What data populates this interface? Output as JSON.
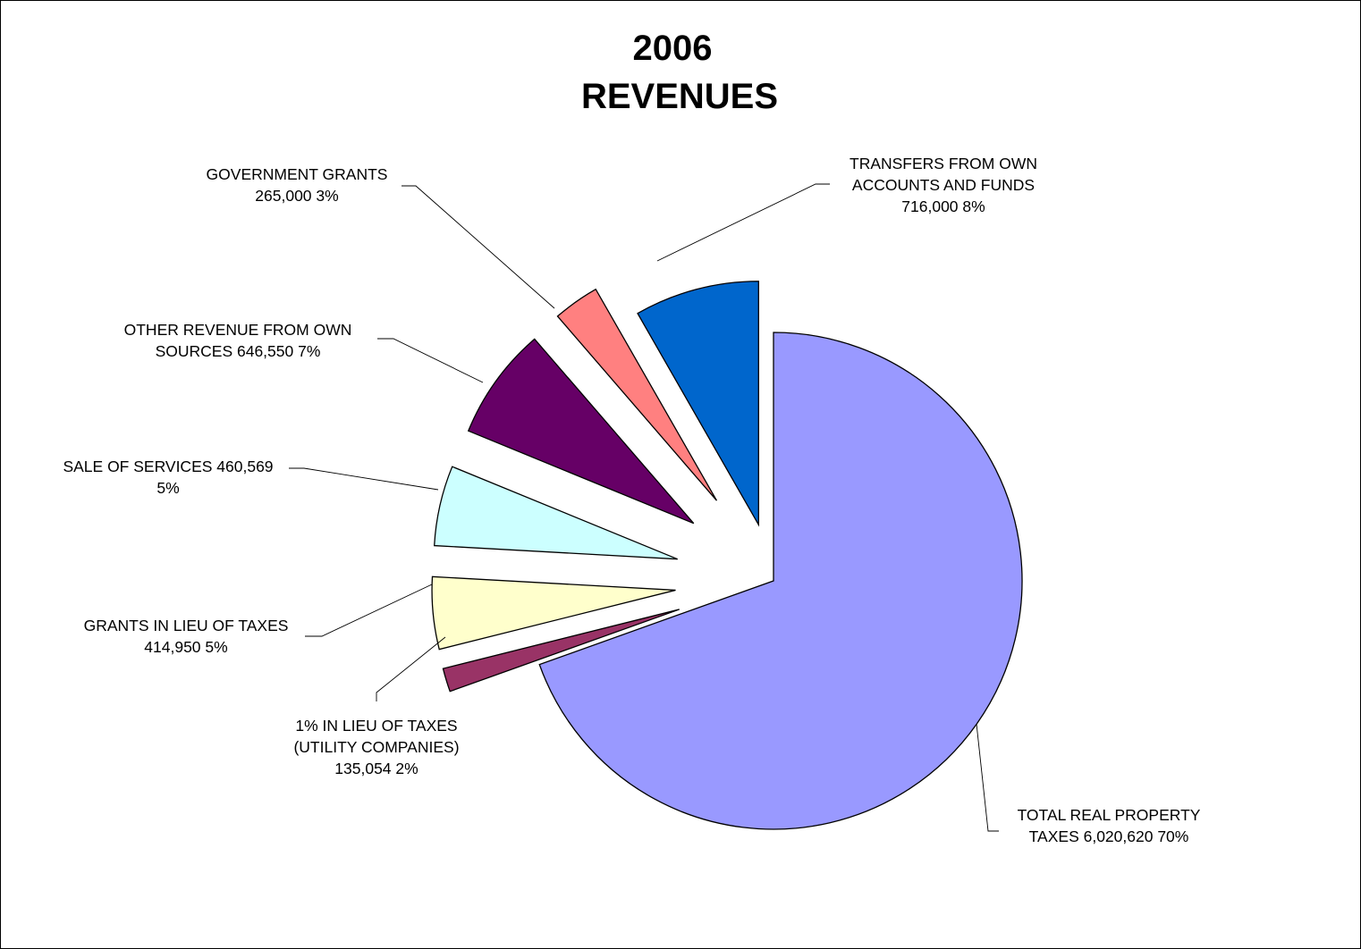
{
  "chart_data": {
    "type": "pie",
    "title": "2006\nREVENUES",
    "title_lines": [
      "2006",
      "REVENUES"
    ],
    "exploded": true,
    "total_label": "",
    "series": [
      {
        "name": "",
        "slices": [
          {
            "label_lines": [
              "TOTAL REAL PROPERTY",
              "TAXES 6,020,620  70%"
            ],
            "value": 6020620,
            "percent": 70,
            "color": "#9999FF"
          },
          {
            "label_lines": [
              "1% IN LIEU OF TAXES",
              "(UTILITY COMPANIES)",
              "135,054  2%"
            ],
            "value": 135054,
            "percent": 2,
            "color": "#993366"
          },
          {
            "label_lines": [
              "GRANTS IN LIEU OF TAXES",
              "414,950  5%"
            ],
            "value": 414950,
            "percent": 5,
            "color": "#FFFFCC"
          },
          {
            "label_lines": [
              "SALE OF SERVICES 460,569",
              "5%"
            ],
            "value": 460569,
            "percent": 5,
            "color": "#CCFFFF"
          },
          {
            "label_lines": [
              "OTHER REVENUE FROM OWN",
              "SOURCES 646,550  7%"
            ],
            "value": 646550,
            "percent": 7,
            "color": "#660066"
          },
          {
            "label_lines": [
              "GOVERNMENT GRANTS",
              "265,000  3%"
            ],
            "value": 265000,
            "percent": 3,
            "color": "#FF8080"
          },
          {
            "label_lines": [
              "TRANSFERS FROM OWN",
              "ACCOUNTS AND FUNDS",
              "716,000  8%"
            ],
            "value": 716000,
            "percent": 8,
            "color": "#0066CC"
          }
        ]
      }
    ],
    "legend": "none",
    "stroke_color": "#000000"
  }
}
